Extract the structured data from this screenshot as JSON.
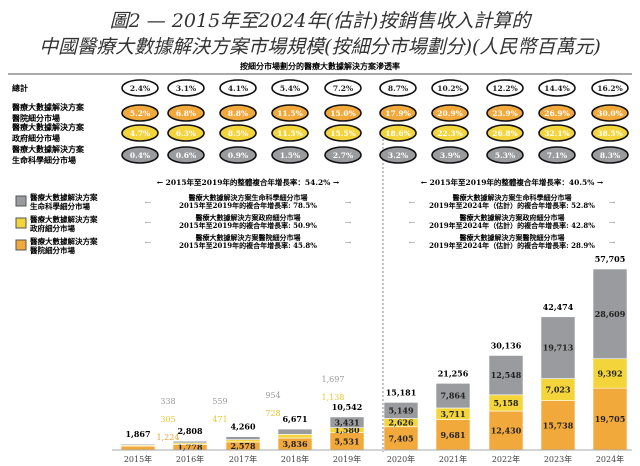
{
  "title_line1": "圖2 — 2015年至2024年(估計)按銷售收入計算的",
  "title_line2": "中國醫療大數據解決方案市場規模(按細分市場劃分)(人民幣百萬元)",
  "penetration": {
    "header": "按細分市場劃分的醫療大數據解決方案滲透率",
    "rows": [
      {
        "label": [
          "總計"
        ],
        "values": [
          "2.4%",
          "3.1%",
          "4.1%",
          "5.4%",
          "7.2%",
          "8.7%",
          "10.2%",
          "12.2%",
          "14.4%",
          "16.2%"
        ]
      },
      {
        "label": [
          "醫療大數據解決方案",
          "醫院細分市場"
        ],
        "values": [
          "5.2%",
          "6.8%",
          "8.8%",
          "11.5%",
          "15.0%",
          "17.9%",
          "20.9%",
          "23.9%",
          "26.9%",
          "30.0%"
        ]
      },
      {
        "label": [
          "醫療大數據解決方案",
          "政府細分市場"
        ],
        "values": [
          "4.7%",
          "6.3%",
          "8.5%",
          "11.5%",
          "15.5%",
          "18.6%",
          "22.3%",
          "26.8%",
          "32.1%",
          "38.5%"
        ]
      },
      {
        "label": [
          "醫療大數據解決方案",
          "生命科學細分市場"
        ],
        "values": [
          "0.4%",
          "0.6%",
          "0.9%",
          "1.5%",
          "2.7%",
          "3.2%",
          "3.9%",
          "5.3%",
          "7.1%",
          "8.3%"
        ]
      }
    ]
  },
  "cagr": {
    "left_overall": "2015年至2019年的整體複合年增長率：54.2%",
    "right_overall": "2015年至2019年的整體複合年增長率：40.5%",
    "left": [
      [
        "醫療大數據解決方案生命科學細分市場",
        "2015年至2019年的複合年增長率: 78.5%"
      ],
      [
        "醫療大數據解決方案政府細分市場",
        "2015年至2019年的複合年增長率: 50.9%"
      ],
      [
        "醫療大數據解決方案醫院細分市場",
        "2015年至2019年的複合年增長率: 45.8%"
      ]
    ],
    "right": [
      [
        "醫療大數據解決方案生命科學細分市場",
        "2019年至2024年（估計）的複合年增長率: 52.8%"
      ],
      [
        "醫療大數據解決方案政府細分市場",
        "2019年至2024年（估計）的複合年增長率: 42.8%"
      ],
      [
        "醫療大數據解決方案醫院細分市場",
        "2019年至2024年（估計）的複合年增長率: 28.9%"
      ]
    ]
  },
  "chart_data": {
    "type": "bar",
    "stacked": true,
    "categories": [
      "2015年",
      "2016年",
      "2017年",
      "2018年",
      "2019年",
      "2020年",
      "2021年",
      "2022年",
      "2023年",
      "2024年"
    ],
    "totals": [
      "1,867",
      "2,808",
      "4,260",
      "6,671",
      "10,542",
      "15,181",
      "21,256",
      "30,136",
      "42,474",
      "57,705"
    ],
    "series": [
      {
        "name": [
          "醫療大數據解決方案",
          "醫院細分市場"
        ],
        "color": "#f2a93b",
        "values": [
          1224,
          1778,
          2578,
          3836,
          5531,
          7405,
          9681,
          12430,
          15738,
          19705
        ],
        "labels": [
          "1,224",
          "1,778",
          "2,578",
          "3,836",
          "5,531",
          "7,405",
          "9,681",
          "12,430",
          "15,738",
          "19,705"
        ]
      },
      {
        "name": [
          "醫療大數據解決方案",
          "政府細分市場"
        ],
        "color": "#f3d43a",
        "values": [
          305,
          471,
          728,
          1138,
          1580,
          2626,
          3711,
          5158,
          7023,
          9392
        ],
        "labels": [
          "305",
          "471",
          "728",
          "1,138",
          "1,580",
          "2,626",
          "3,711",
          "5,158",
          "7,023",
          "9,392"
        ]
      },
      {
        "name": [
          "醫療大數據解決方案",
          "生命科學細分市場"
        ],
        "color": "#999b9e",
        "values": [
          338,
          559,
          954,
          1697,
          3431,
          5149,
          7864,
          12548,
          19713,
          28609
        ],
        "labels": [
          "338",
          "559",
          "954",
          "1,697",
          "3,431",
          "5,149",
          "7,864",
          "12,548",
          "19,713",
          "28,609"
        ]
      }
    ],
    "ylim": [
      0,
      57705
    ]
  }
}
